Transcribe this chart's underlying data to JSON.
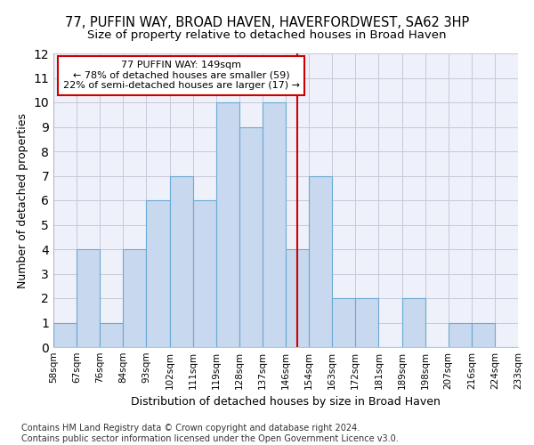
{
  "title_line1": "77, PUFFIN WAY, BROAD HAVEN, HAVERFORDWEST, SA62 3HP",
  "title_line2": "Size of property relative to detached houses in Broad Haven",
  "xlabel": "Distribution of detached houses by size in Broad Haven",
  "ylabel": "Number of detached properties",
  "footnote": "Contains HM Land Registry data © Crown copyright and database right 2024.\nContains public sector information licensed under the Open Government Licence v3.0.",
  "bin_labels": [
    "58sqm",
    "67sqm",
    "76sqm",
    "84sqm",
    "93sqm",
    "102sqm",
    "111sqm",
    "119sqm",
    "128sqm",
    "137sqm",
    "146sqm",
    "154sqm",
    "163sqm",
    "172sqm",
    "181sqm",
    "189sqm",
    "198sqm",
    "207sqm",
    "216sqm",
    "224sqm",
    "233sqm"
  ],
  "bar_values": [
    1,
    4,
    1,
    4,
    6,
    7,
    6,
    10,
    9,
    10,
    4,
    7,
    2,
    2,
    0,
    2,
    0,
    1,
    1,
    0
  ],
  "bar_color": "#c8d8ee",
  "bar_edge_color": "#6aaad4",
  "reference_line_x": 10.5,
  "reference_line_color": "#cc0000",
  "annotation_text": "77 PUFFIN WAY: 149sqm\n← 78% of detached houses are smaller (59)\n22% of semi-detached houses are larger (17) →",
  "ylim": [
    0,
    12
  ],
  "yticks": [
    0,
    1,
    2,
    3,
    4,
    5,
    6,
    7,
    8,
    9,
    10,
    11,
    12
  ],
  "grid_color": "#c8c8d8",
  "background_color": "#eef0fa",
  "title_fontsize": 10.5,
  "subtitle_fontsize": 9.5,
  "axis_label_fontsize": 9,
  "tick_fontsize": 7.5,
  "annotation_fontsize": 8,
  "footnote_fontsize": 7
}
